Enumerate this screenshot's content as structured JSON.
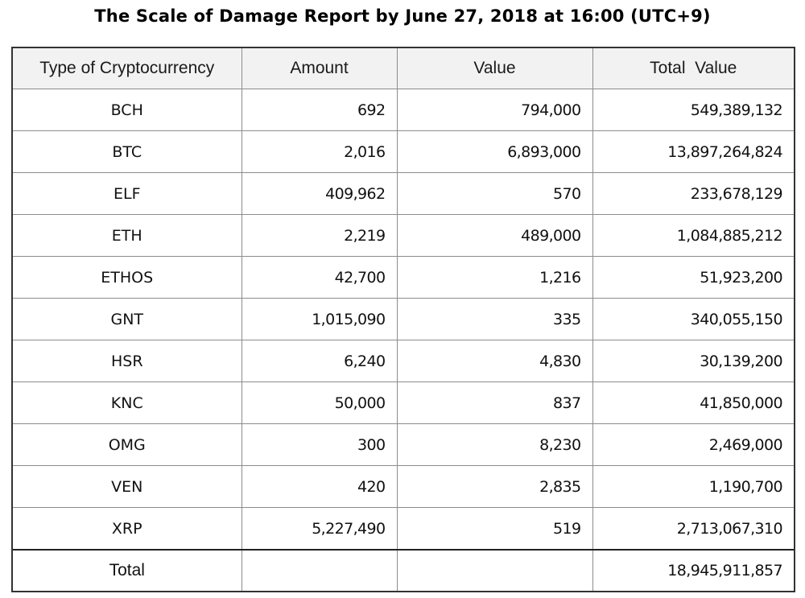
{
  "title": "The Scale of Damage Report by June 27, 2018 at 16:00 (UTC+9)",
  "table": {
    "headers": [
      "Type of Cryptocurrency",
      "Amount",
      "Value",
      "Total  Value"
    ],
    "rows": [
      [
        "BCH",
        "692",
        "794,000",
        "549,389,132"
      ],
      [
        "BTC",
        "2,016",
        "6,893,000",
        "13,897,264,824"
      ],
      [
        "ELF",
        "409,962",
        "570",
        "233,678,129"
      ],
      [
        "ETH",
        "2,219",
        "489,000",
        "1,084,885,212"
      ],
      [
        "ETHOS",
        "42,700",
        "1,216",
        "51,923,200"
      ],
      [
        "GNT",
        "1,015,090",
        "335",
        "340,055,150"
      ],
      [
        "HSR",
        "6,240",
        "4,830",
        "30,139,200"
      ],
      [
        "KNC",
        "50,000",
        "837",
        "41,850,000"
      ],
      [
        "OMG",
        "300",
        "8,230",
        "2,469,000"
      ],
      [
        "VEN",
        "420",
        "2,835",
        "1,190,700"
      ],
      [
        "XRP",
        "5,227,490",
        "519",
        "2,713,067,310"
      ]
    ],
    "total": {
      "label": "Total",
      "amount": "",
      "value": "",
      "total_value": "18,945,911,857"
    }
  }
}
